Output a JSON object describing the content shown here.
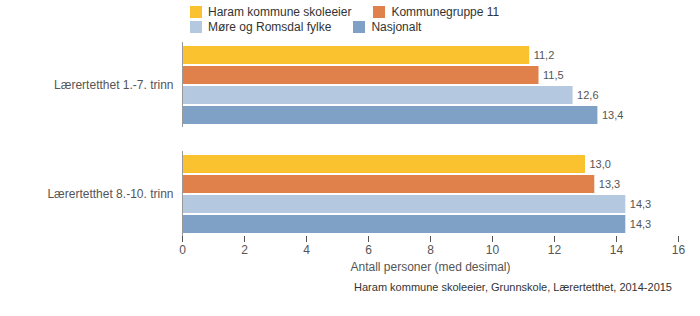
{
  "chart_data": {
    "type": "bar",
    "orientation": "horizontal",
    "categories": [
      "Lærertetthet 1.-7. trinn",
      "Lærertetthet 8.-10. trinn"
    ],
    "series": [
      {
        "name": "Haram kommune skoleeier",
        "color": "#f9c22e",
        "values": [
          11.2,
          13.0
        ],
        "value_labels": [
          "11,2",
          "13,0"
        ]
      },
      {
        "name": "Kommunegruppe 11",
        "color": "#e0804a",
        "values": [
          11.5,
          13.3
        ],
        "value_labels": [
          "11,5",
          "13,3"
        ]
      },
      {
        "name": "Møre og Romsdal fylke",
        "color": "#b4c8df",
        "values": [
          12.6,
          14.3
        ],
        "value_labels": [
          "12,6",
          "14,3"
        ]
      },
      {
        "name": "Nasjonalt",
        "color": "#7fa1c6",
        "values": [
          13.4,
          14.3
        ],
        "value_labels": [
          "13,4",
          "14,3"
        ]
      }
    ],
    "xlim": [
      0,
      16
    ],
    "xticks": [
      0,
      2,
      4,
      6,
      8,
      10,
      12,
      14,
      16
    ],
    "xlabel": "Antall personer (med desimal)",
    "caption": "Haram kommune skoleeier, Grunnskole, Lærertetthet, 2014-2015",
    "data_labels": true,
    "grid": false,
    "legend": "top"
  }
}
